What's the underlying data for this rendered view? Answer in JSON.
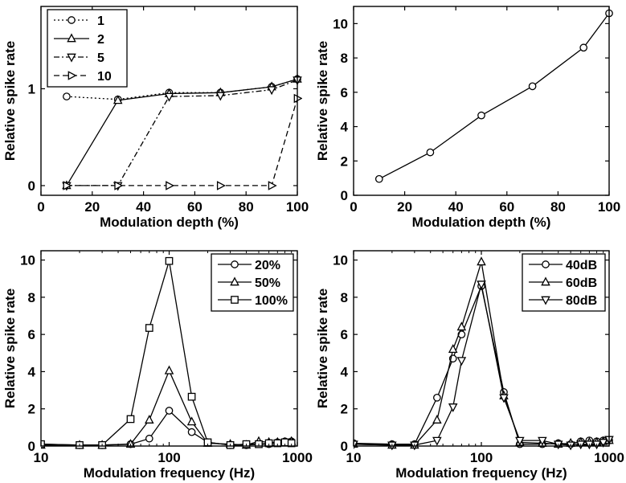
{
  "chart_data": [
    {
      "type": "line",
      "xlabel": "Modulation depth (%)",
      "ylabel": "Relative spike rate",
      "xlim": [
        0,
        100
      ],
      "ylim": [
        -0.1,
        1.85
      ],
      "xticks": [
        0,
        20,
        40,
        60,
        80,
        100
      ],
      "yticks": [
        0,
        1
      ],
      "legend_position": "top-left",
      "series": [
        {
          "name": "1",
          "marker": "circle",
          "dash": "dotted",
          "x": [
            10,
            30,
            50,
            70,
            90,
            100
          ],
          "y": [
            0.92,
            0.89,
            0.96,
            0.96,
            1.02,
            1.1
          ]
        },
        {
          "name": "2",
          "marker": "triangle-up",
          "dash": "solid",
          "x": [
            10,
            30,
            50,
            70,
            90,
            100
          ],
          "y": [
            0.0,
            0.88,
            0.95,
            0.96,
            1.02,
            1.1
          ]
        },
        {
          "name": "5",
          "marker": "triangle-down",
          "dash": "dashdot",
          "x": [
            10,
            30,
            50,
            70,
            90,
            100
          ],
          "y": [
            0.0,
            0.0,
            0.92,
            0.93,
            0.99,
            1.09
          ]
        },
        {
          "name": "10",
          "marker": "triangle-right",
          "dash": "dashed",
          "x": [
            10,
            30,
            50,
            70,
            90,
            100
          ],
          "y": [
            0.0,
            0.0,
            0.0,
            0.0,
            0.0,
            0.9
          ]
        }
      ]
    },
    {
      "type": "line",
      "xlabel": "Modulation depth (%)",
      "ylabel": "Relative spike rate",
      "xlim": [
        0,
        100
      ],
      "ylim": [
        0,
        11
      ],
      "xticks": [
        0,
        20,
        40,
        60,
        80,
        100
      ],
      "yticks": [
        0,
        2,
        4,
        6,
        8,
        10
      ],
      "series": [
        {
          "marker": "circle",
          "dash": "solid",
          "x": [
            10,
            30,
            50,
            70,
            90,
            100
          ],
          "y": [
            0.95,
            2.5,
            4.65,
            6.35,
            8.6,
            10.6
          ]
        }
      ]
    },
    {
      "type": "line",
      "xscale": "log",
      "xlabel": "Modulation frequency (Hz)",
      "ylabel": "Relative spike rate",
      "xlim": [
        10,
        1000
      ],
      "ylim": [
        0,
        10.5
      ],
      "xticks": [
        10,
        100,
        1000
      ],
      "yticks": [
        0,
        2,
        4,
        6,
        8,
        10
      ],
      "legend_position": "top-right",
      "series": [
        {
          "name": "20%",
          "marker": "circle",
          "dash": "solid",
          "x": [
            10,
            20,
            30,
            50,
            70,
            100,
            150,
            200,
            300,
            400,
            500,
            600,
            700,
            800,
            900
          ],
          "y": [
            0.1,
            0.05,
            0.05,
            0.1,
            0.4,
            1.9,
            0.75,
            0.2,
            0.05,
            0.05,
            0.1,
            0.1,
            0.2,
            0.25,
            0.25
          ]
        },
        {
          "name": "50%",
          "marker": "triangle-up",
          "dash": "solid",
          "x": [
            10,
            20,
            30,
            50,
            70,
            100,
            150,
            200,
            300,
            400,
            500,
            600,
            700,
            800,
            900
          ],
          "y": [
            0.05,
            0.05,
            0.05,
            0.1,
            1.4,
            4.05,
            1.3,
            0.15,
            0.1,
            0.05,
            0.25,
            0.2,
            0.2,
            0.2,
            0.25
          ]
        },
        {
          "name": "100%",
          "marker": "square",
          "dash": "solid",
          "x": [
            10,
            20,
            30,
            50,
            70,
            100,
            150,
            200,
            300,
            400,
            500,
            600,
            700,
            800,
            900
          ],
          "y": [
            0.1,
            0.05,
            0.05,
            1.45,
            6.35,
            9.95,
            2.65,
            0.2,
            0.05,
            0.1,
            0.1,
            0.15,
            0.15,
            0.2,
            0.15
          ]
        }
      ]
    },
    {
      "type": "line",
      "xscale": "log",
      "xlabel": "Modulation frequency (Hz)",
      "ylabel": "Relative spike rate",
      "xlim": [
        10,
        1000
      ],
      "ylim": [
        0,
        10.5
      ],
      "xticks": [
        10,
        100,
        1000
      ],
      "yticks": [
        0,
        2,
        4,
        6,
        8,
        10
      ],
      "legend_position": "top-right",
      "series": [
        {
          "name": "40dB",
          "marker": "circle",
          "dash": "solid",
          "x": [
            10,
            20,
            30,
            45,
            60,
            70,
            100,
            150,
            200,
            300,
            400,
            500,
            600,
            700,
            800,
            900,
            1000
          ],
          "y": [
            0.15,
            0.1,
            0.1,
            2.6,
            4.7,
            6.0,
            8.6,
            2.9,
            0.1,
            0.1,
            0.15,
            0.1,
            0.25,
            0.3,
            0.25,
            0.3,
            0.3
          ]
        },
        {
          "name": "60dB",
          "marker": "triangle-up",
          "dash": "solid",
          "x": [
            10,
            20,
            30,
            45,
            60,
            70,
            100,
            150,
            200,
            300,
            400,
            500,
            600,
            700,
            800,
            900,
            1000
          ],
          "y": [
            0.1,
            0.05,
            0.05,
            1.4,
            5.2,
            6.4,
            9.9,
            2.7,
            0.2,
            0.15,
            0.1,
            0.15,
            0.2,
            0.2,
            0.2,
            0.25,
            0.3
          ]
        },
        {
          "name": "80dB",
          "marker": "triangle-down",
          "dash": "solid",
          "x": [
            10,
            20,
            30,
            45,
            60,
            70,
            100,
            150,
            200,
            300,
            400,
            500,
            600,
            700,
            800,
            900,
            1000
          ],
          "y": [
            0.1,
            0.05,
            0.05,
            0.3,
            2.1,
            4.6,
            8.7,
            2.6,
            0.3,
            0.3,
            0.1,
            0.05,
            0.1,
            0.1,
            0.1,
            0.2,
            0.35
          ]
        }
      ]
    }
  ]
}
